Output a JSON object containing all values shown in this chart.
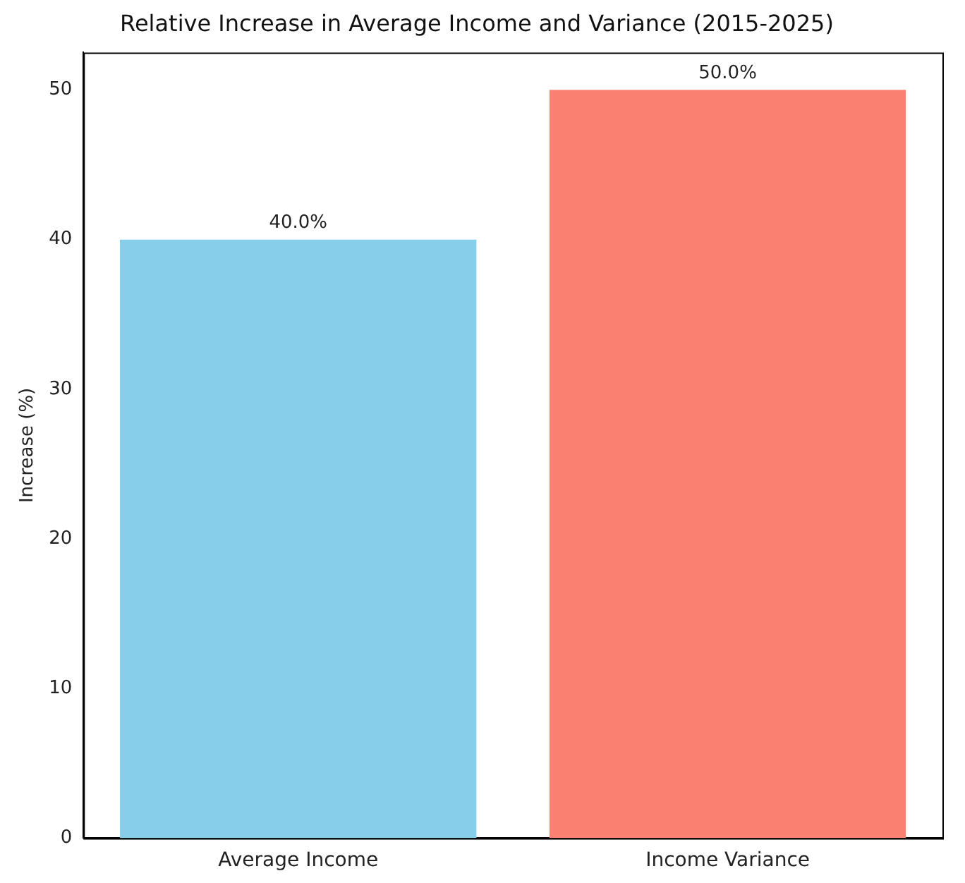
{
  "chart_data": {
    "type": "bar",
    "title": "Relative Increase in Average Income and Variance (2015-2025)",
    "ylabel": "Increase (%)",
    "categories": [
      "Average Income",
      "Income Variance"
    ],
    "values": [
      40,
      50
    ],
    "colors": [
      "#87ceeb",
      "#fa8072"
    ],
    "value_labels": [
      "40.0%",
      "50.0%"
    ],
    "ylim": [
      0,
      52.5
    ],
    "yticks": [
      0,
      10,
      20,
      30,
      40,
      50
    ],
    "grid": false,
    "legend": false
  }
}
